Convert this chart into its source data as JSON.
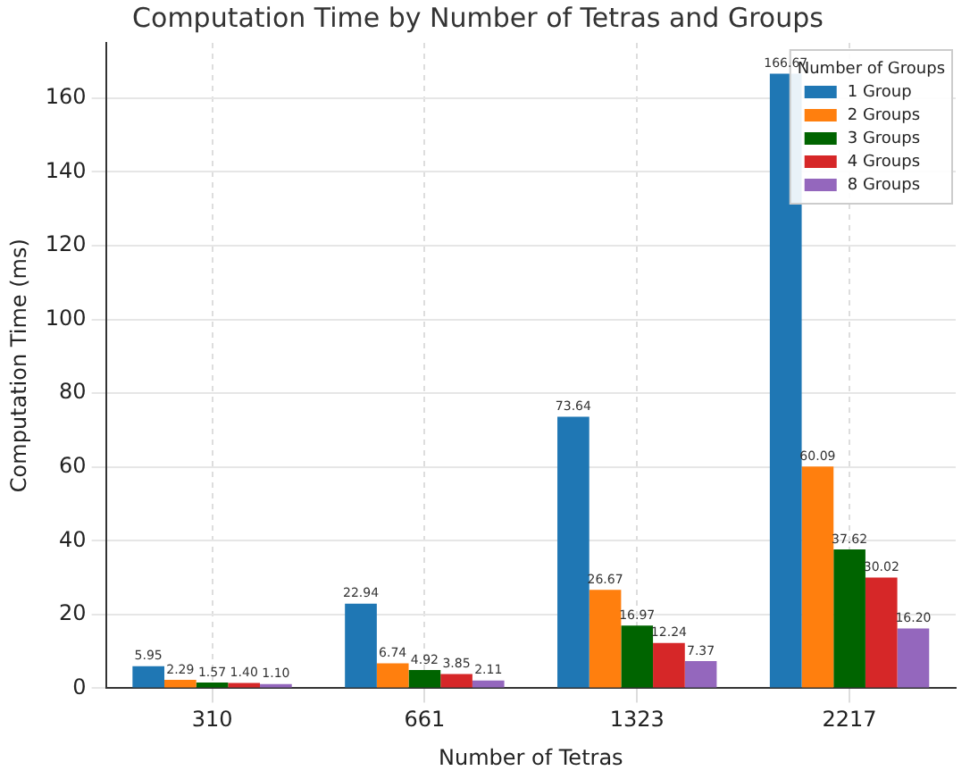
{
  "chart_data": {
    "type": "bar",
    "title": "Computation Time by Number of Tetras and Groups",
    "xlabel": "Number of Tetras",
    "ylabel": "Computation Time (ms)",
    "legend_title": "Number of Groups",
    "categories": [
      "310",
      "661",
      "1323",
      "2217"
    ],
    "series": [
      {
        "name": "1 Group",
        "color": "#1f77b4",
        "values": [
          5.95,
          22.94,
          73.64,
          166.67
        ],
        "value_labels": [
          "5.95",
          "22.94",
          "73.64",
          "166.67"
        ]
      },
      {
        "name": "2 Groups",
        "color": "#ff7f0e",
        "values": [
          2.29,
          6.74,
          26.67,
          60.09
        ],
        "value_labels": [
          "2.29",
          "6.74",
          "26.67",
          "60.09"
        ]
      },
      {
        "name": "3 Groups",
        "color": "#006400",
        "values": [
          1.57,
          4.92,
          16.97,
          37.62
        ],
        "value_labels": [
          "1.57",
          "4.92",
          "16.97",
          "37.62"
        ]
      },
      {
        "name": "4 Groups",
        "color": "#d62728",
        "values": [
          1.4,
          3.85,
          12.24,
          30.02
        ],
        "value_labels": [
          "1.40",
          "3.85",
          "12.24",
          "30.02"
        ]
      },
      {
        "name": "8 Groups",
        "color": "#9467bd",
        "values": [
          1.1,
          2.11,
          7.37,
          16.2
        ],
        "value_labels": [
          "1.10",
          "2.11",
          "7.37",
          "16.20"
        ]
      }
    ],
    "ylim": [
      0,
      175
    ],
    "yticks": [
      0,
      20,
      40,
      60,
      80,
      100,
      120,
      140,
      160
    ],
    "grid": true,
    "legend": "top right"
  }
}
